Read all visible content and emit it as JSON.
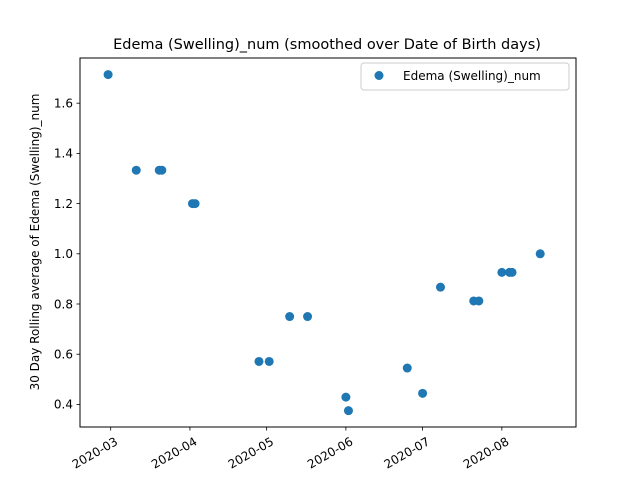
{
  "chart_data": {
    "type": "scatter",
    "title": "Edema (Swelling)_num (smoothed over Date of Birth days)",
    "xlabel": "",
    "ylabel": "30 Day Rolling average of Edema (Swelling)_num",
    "xlim": [
      "2020-02-18",
      "2020-08-30"
    ],
    "ylim": [
      0.31,
      1.78
    ],
    "x_ticks": [
      "2020-03-01",
      "2020-04-01",
      "2020-05-01",
      "2020-06-01",
      "2020-07-01",
      "2020-08-01"
    ],
    "x_tick_labels": [
      "2020-03",
      "2020-04",
      "2020-05",
      "2020-06",
      "2020-07",
      "2020-08"
    ],
    "y_ticks": [
      0.4,
      0.6,
      0.8,
      1.0,
      1.2,
      1.4,
      1.6
    ],
    "y_tick_labels": [
      "0.4",
      "0.6",
      "0.8",
      "1.0",
      "1.2",
      "1.4",
      "1.6"
    ],
    "grid": false,
    "legend_position": "top-right",
    "series": [
      {
        "name": "Edema (Swelling)_num",
        "color": "#1f77b4",
        "points": [
          {
            "x": "2020-02-29",
            "y": 1.714
          },
          {
            "x": "2020-03-11",
            "y": 1.333
          },
          {
            "x": "2020-03-20",
            "y": 1.333
          },
          {
            "x": "2020-03-21",
            "y": 1.333
          },
          {
            "x": "2020-04-02",
            "y": 1.2
          },
          {
            "x": "2020-04-03",
            "y": 1.2
          },
          {
            "x": "2020-04-28",
            "y": 0.571
          },
          {
            "x": "2020-05-02",
            "y": 0.571
          },
          {
            "x": "2020-05-10",
            "y": 0.75
          },
          {
            "x": "2020-05-17",
            "y": 0.75
          },
          {
            "x": "2020-06-01",
            "y": 0.429
          },
          {
            "x": "2020-06-02",
            "y": 0.375
          },
          {
            "x": "2020-06-25",
            "y": 0.545
          },
          {
            "x": "2020-07-01",
            "y": 0.444
          },
          {
            "x": "2020-07-08",
            "y": 0.867
          },
          {
            "x": "2020-07-21",
            "y": 0.812
          },
          {
            "x": "2020-07-23",
            "y": 0.812
          },
          {
            "x": "2020-08-01",
            "y": 0.926
          },
          {
            "x": "2020-08-04",
            "y": 0.926
          },
          {
            "x": "2020-08-05",
            "y": 0.926
          },
          {
            "x": "2020-08-16",
            "y": 1.0
          }
        ]
      }
    ]
  }
}
